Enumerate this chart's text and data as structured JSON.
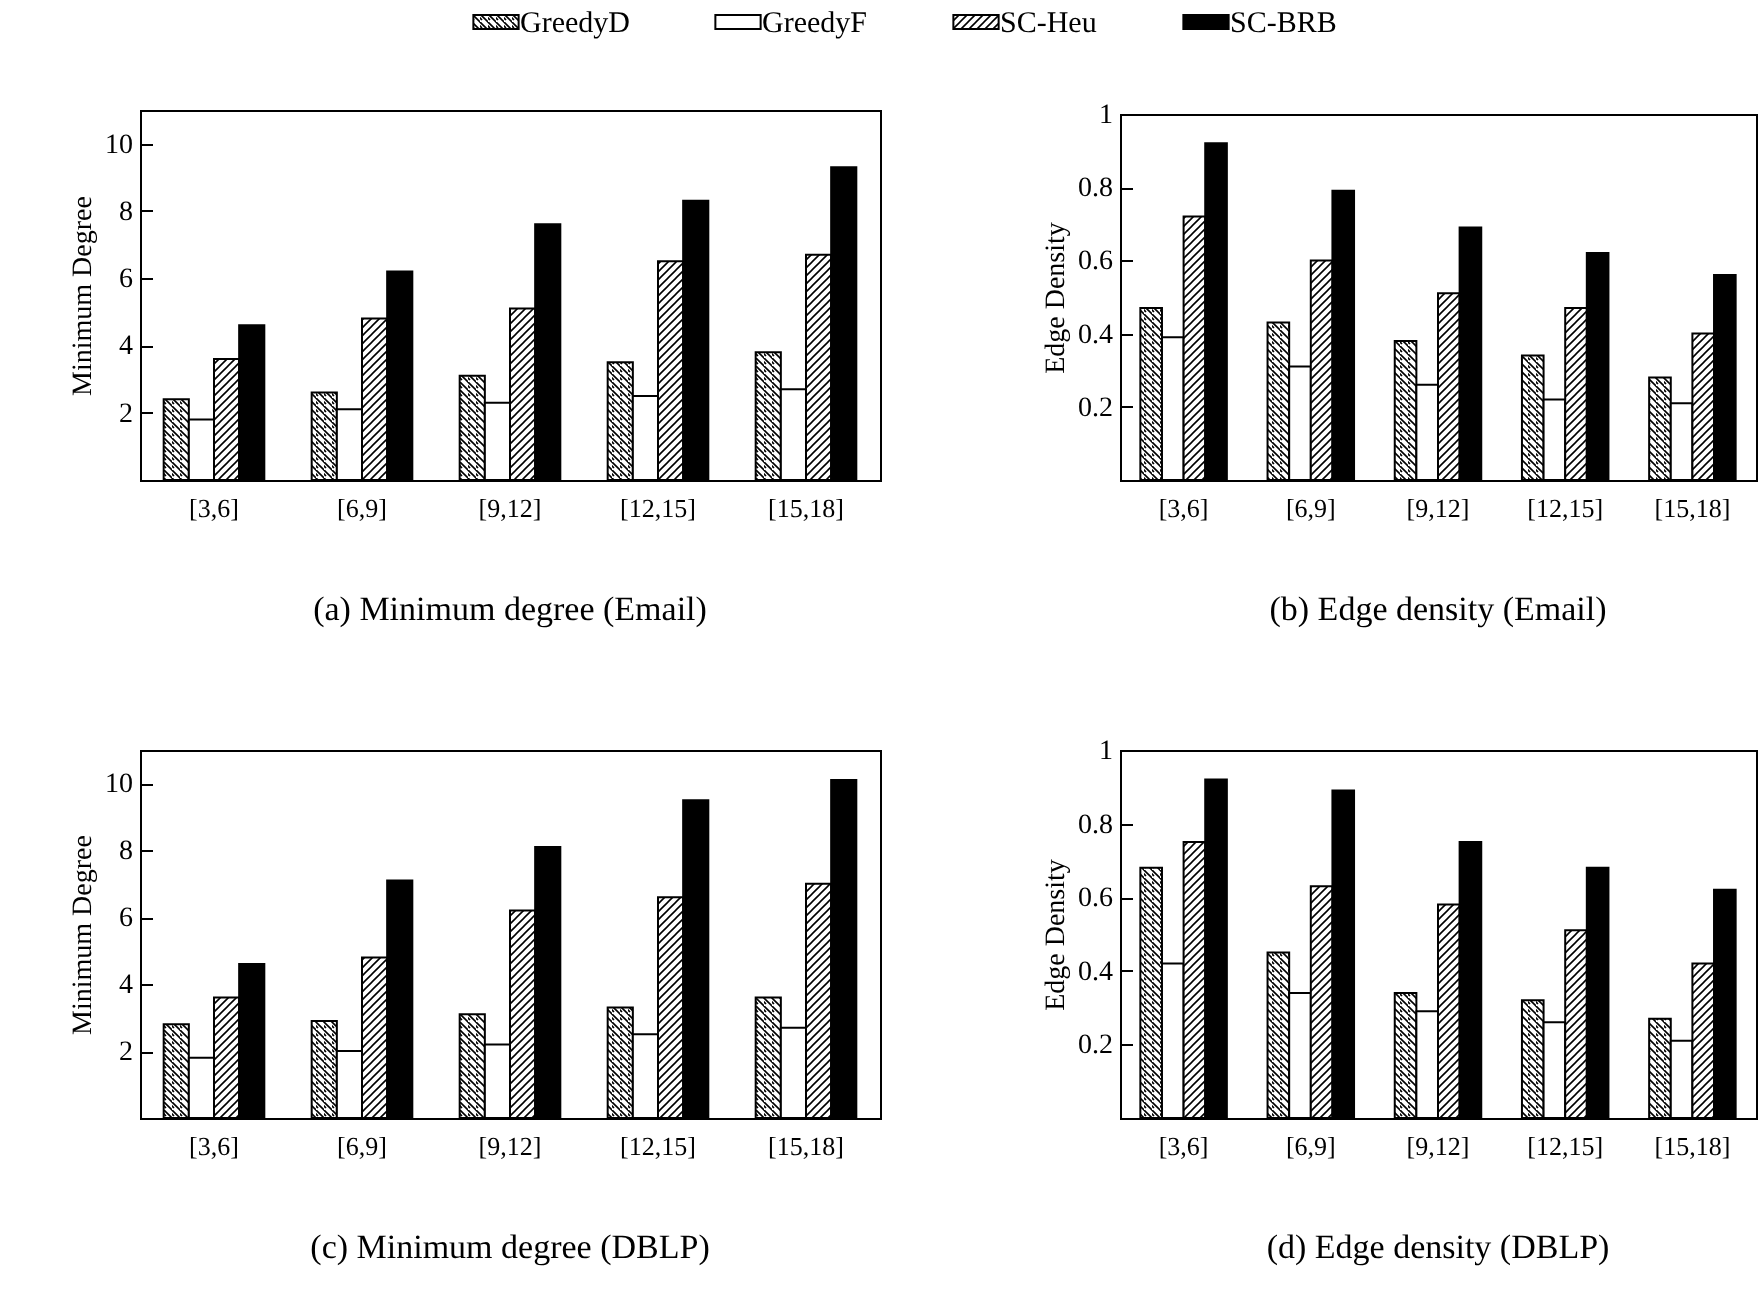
{
  "chart_data": [
    {
      "type": "bar",
      "ylabel": "Minimum Degree",
      "categories": [
        "[3,6]",
        "[6,9]",
        "[9,12]",
        "[12,15]",
        "[15,18]"
      ],
      "ylim": [
        0,
        11
      ],
      "yticks": [
        2,
        4,
        6,
        8,
        10
      ],
      "grid": false,
      "legend": "top",
      "annotations": [
        "(a) Minimum degree (Email)"
      ],
      "series": [
        {
          "name": "GreedyD",
          "color": "#000000",
          "values": [
            2.4,
            2.6,
            3.1,
            3.5,
            3.8
          ]
        },
        {
          "name": "GreedyF",
          "color": "#ffffff",
          "values": [
            1.8,
            2.1,
            2.3,
            2.5,
            2.7
          ]
        },
        {
          "name": "SC-Heu",
          "color": "#000000",
          "values": [
            3.6,
            4.8,
            5.1,
            6.5,
            6.7
          ]
        },
        {
          "name": "SC-BRB",
          "color": "#000000",
          "values": [
            4.6,
            6.2,
            7.6,
            8.3,
            9.3
          ]
        }
      ]
    },
    {
      "type": "bar",
      "ylabel": "Edge Density",
      "categories": [
        "[3,6]",
        "[6,9]",
        "[9,12]",
        "[12,15]",
        "[15,18]"
      ],
      "ylim": [
        0,
        1
      ],
      "yticks": [
        0.2,
        0.4,
        0.6,
        0.8,
        {
          "value": 1,
          "label": "1"
        }
      ],
      "grid": false,
      "annotations": [
        "(b) Edge density (Email)"
      ],
      "series": [
        {
          "name": "GreedyD",
          "color": "#000000",
          "values": [
            0.47,
            0.43,
            0.38,
            0.34,
            0.28
          ]
        },
        {
          "name": "GreedyF",
          "color": "#ffffff",
          "values": [
            0.39,
            0.31,
            0.26,
            0.22,
            0.21
          ]
        },
        {
          "name": "SC-Heu",
          "color": "#000000",
          "values": [
            0.72,
            0.6,
            0.51,
            0.47,
            0.4
          ]
        },
        {
          "name": "SC-BRB",
          "color": "#000000",
          "values": [
            0.92,
            0.79,
            0.69,
            0.62,
            0.56
          ]
        }
      ]
    },
    {
      "type": "bar",
      "ylabel": "Minimum Degree",
      "categories": [
        "[3,6]",
        "[6,9]",
        "[9,12]",
        "[12,15]",
        "[15,18]"
      ],
      "ylim": [
        0,
        11
      ],
      "yticks": [
        2,
        4,
        6,
        8,
        10
      ],
      "grid": false,
      "annotations": [
        "(c) Minimum degree (DBLP)"
      ],
      "series": [
        {
          "name": "GreedyD",
          "color": "#000000",
          "values": [
            2.8,
            2.9,
            3.1,
            3.3,
            3.6
          ]
        },
        {
          "name": "GreedyF",
          "color": "#ffffff",
          "values": [
            1.8,
            2.0,
            2.2,
            2.5,
            2.7
          ]
        },
        {
          "name": "SC-Heu",
          "color": "#000000",
          "values": [
            3.6,
            4.8,
            6.2,
            6.6,
            7.0
          ]
        },
        {
          "name": "SC-BRB",
          "color": "#000000",
          "values": [
            4.6,
            7.1,
            8.1,
            9.5,
            10.1
          ]
        }
      ]
    },
    {
      "type": "bar",
      "ylabel": "Edge Density",
      "categories": [
        "[3,6]",
        "[6,9]",
        "[9,12]",
        "[12,15]",
        "[15,18]"
      ],
      "ylim": [
        0,
        1
      ],
      "yticks": [
        0.2,
        0.4,
        0.6,
        0.8,
        {
          "value": 1,
          "label": "1"
        }
      ],
      "grid": false,
      "annotations": [
        "(d) Edge density (DBLP)"
      ],
      "series": [
        {
          "name": "GreedyD",
          "color": "#000000",
          "values": [
            0.68,
            0.45,
            0.34,
            0.32,
            0.27
          ]
        },
        {
          "name": "GreedyF",
          "color": "#ffffff",
          "values": [
            0.42,
            0.34,
            0.29,
            0.26,
            0.21
          ]
        },
        {
          "name": "SC-Heu",
          "color": "#000000",
          "values": [
            0.75,
            0.63,
            0.58,
            0.51,
            0.42
          ]
        },
        {
          "name": "SC-BRB",
          "color": "#000000",
          "values": [
            0.92,
            0.89,
            0.75,
            0.68,
            0.62
          ]
        }
      ]
    }
  ]
}
